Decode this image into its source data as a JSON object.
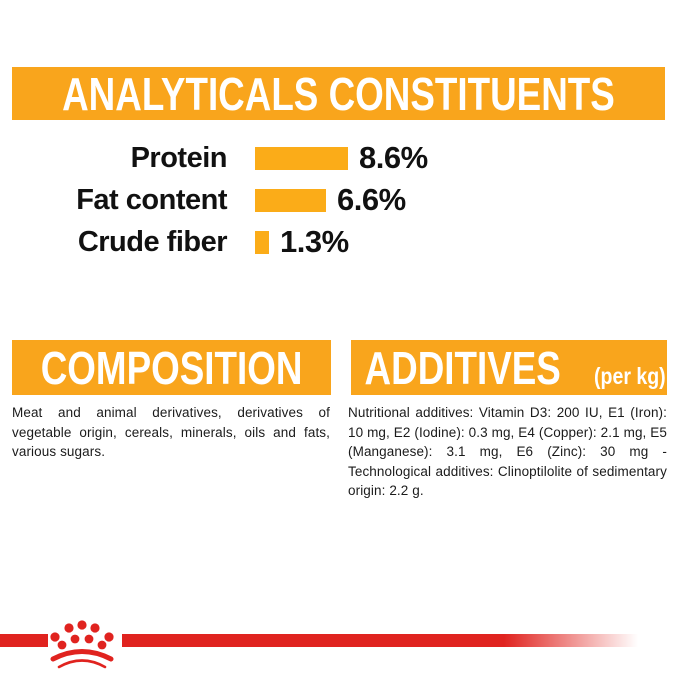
{
  "analyticals": {
    "title": "ANALYTICALS CONSTITUENTS",
    "rows": [
      {
        "label": "Protein",
        "value": "8.6%",
        "percent": 8.6
      },
      {
        "label": "Fat content",
        "value": "6.6%",
        "percent": 6.6
      },
      {
        "label": "Crude fiber",
        "value": "1.3%",
        "percent": 1.3
      }
    ]
  },
  "composition": {
    "title": "COMPOSITION",
    "body": "Meat and animal derivatives, derivatives of vegetable origin, cereals, minerals, oils and fats, various sugars."
  },
  "additives": {
    "title": "ADDITIVES",
    "title_suffix": "(per kg)",
    "body": "Nutritional additives: Vitamin D3: 200 IU, E1 (Iron): 10 mg, E2 (Iodine): 0.3 mg, E4 (Copper): 2.1 mg, E5 (Manganese): 3.1 mg, E6 (Zinc): 30 mg - Technological additives: Clinoptilolite of sedimentary origin: 2.2 g."
  },
  "colors": {
    "banner_orange": "#F9A51C",
    "bar_orange": "#FBAC18",
    "brand_red": "#E0231F",
    "text_black": "#1a1a1a"
  },
  "logo": {
    "name": "royal-canin-crown"
  },
  "chart_data": {
    "type": "bar",
    "orientation": "horizontal",
    "title": "ANALYTICALS CONSTITUENTS",
    "categories": [
      "Protein",
      "Fat content",
      "Crude fiber"
    ],
    "values": [
      8.6,
      6.6,
      1.3
    ],
    "unit": "%",
    "bar_color": "#FBAC18",
    "value_labels": [
      "8.6%",
      "6.6%",
      "1.3%"
    ],
    "xlim": [
      0,
      10
    ],
    "grid": false,
    "legend": false
  }
}
